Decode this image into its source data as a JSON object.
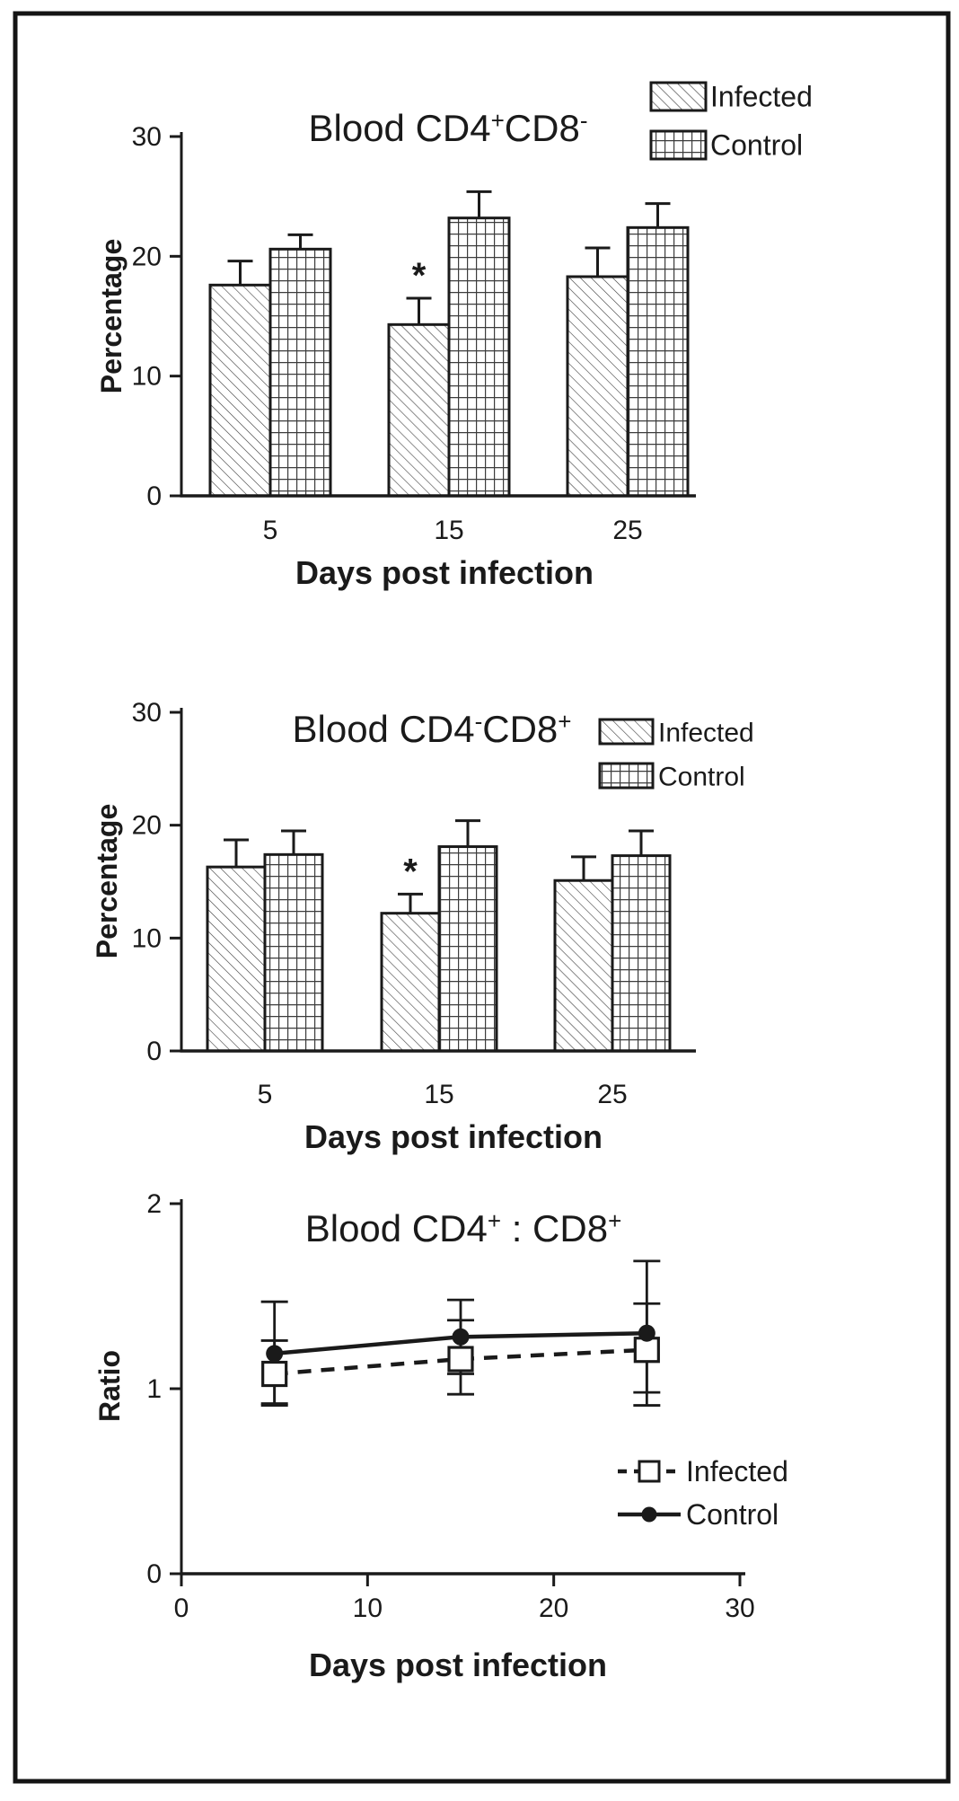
{
  "figure": {
    "background": "#ffffff",
    "frame_color": "#141414",
    "ink_color": "#1a1a1a"
  },
  "chart_data": [
    {
      "id": "blood-cd4pos-cd8neg",
      "type": "bar",
      "title": "Blood CD4+CD8-",
      "title_segments": [
        {
          "text": "Blood CD4"
        },
        {
          "text": "+",
          "sup": true
        },
        {
          "text": "CD8"
        },
        {
          "text": "-",
          "sup": true
        }
      ],
      "xlabel": "Days post infection",
      "ylabel": "Percentage",
      "categories": [
        "5",
        "15",
        "25"
      ],
      "yticks": [
        0,
        10,
        20,
        30
      ],
      "ylim": [
        0,
        30
      ],
      "grid": false,
      "legend_position": "top-right",
      "series": [
        {
          "name": "Infected",
          "pattern": "diagonal",
          "values": [
            17.6,
            14.3,
            18.3
          ],
          "error_upper": [
            2.0,
            2.2,
            2.4
          ]
        },
        {
          "name": "Control",
          "pattern": "grid",
          "values": [
            20.6,
            23.2,
            22.4
          ],
          "error_upper": [
            1.2,
            2.2,
            2.0
          ]
        }
      ],
      "annotations": [
        {
          "text": "*",
          "series": "Infected",
          "category_index": 1
        }
      ],
      "legend": [
        {
          "label": "Infected",
          "pattern": "diagonal"
        },
        {
          "label": "Control",
          "pattern": "grid"
        }
      ]
    },
    {
      "id": "blood-cd4neg-cd8pos",
      "type": "bar",
      "title": "Blood CD4-CD8+",
      "title_segments": [
        {
          "text": "Blood CD4"
        },
        {
          "text": "-",
          "sup": true
        },
        {
          "text": "CD8"
        },
        {
          "text": "+",
          "sup": true
        }
      ],
      "xlabel": "Days post infection",
      "ylabel": "Percentage",
      "categories": [
        "5",
        "15",
        "25"
      ],
      "yticks": [
        0,
        10,
        20,
        30
      ],
      "ylim": [
        0,
        30
      ],
      "grid": false,
      "legend_position": "top-right",
      "series": [
        {
          "name": "Infected",
          "pattern": "diagonal",
          "values": [
            16.3,
            12.2,
            15.1
          ],
          "error_upper": [
            2.4,
            1.7,
            2.1
          ]
        },
        {
          "name": "Control",
          "pattern": "grid",
          "values": [
            17.4,
            18.1,
            17.3
          ],
          "error_upper": [
            2.1,
            2.3,
            2.2
          ]
        }
      ],
      "annotations": [
        {
          "text": "*",
          "series": "Infected",
          "category_index": 1
        }
      ],
      "legend": [
        {
          "label": "Infected",
          "pattern": "diagonal"
        },
        {
          "label": "Control",
          "pattern": "grid"
        }
      ]
    },
    {
      "id": "blood-cd4-cd8-ratio",
      "type": "line",
      "title": "Blood CD4+ : CD8+",
      "title_segments": [
        {
          "text": "Blood CD4"
        },
        {
          "text": "+",
          "sup": true
        },
        {
          "text": " : CD8"
        },
        {
          "text": "+",
          "sup": true
        }
      ],
      "xlabel": "Days post infection",
      "ylabel": "Ratio",
      "x": [
        5,
        15,
        25
      ],
      "xticks": [
        0,
        10,
        20,
        30
      ],
      "xlim": [
        0,
        30
      ],
      "yticks": [
        0,
        1,
        2
      ],
      "ylim": [
        0,
        2
      ],
      "grid": false,
      "legend_position": "inside-bottom-right",
      "series": [
        {
          "name": "Infected",
          "marker": "open-square",
          "line": "dashed",
          "values": [
            1.08,
            1.16,
            1.21
          ],
          "error_upper": [
            0.18,
            0.21,
            0.25
          ],
          "error_lower": [
            0.17,
            0.19,
            0.23
          ]
        },
        {
          "name": "Control",
          "marker": "filled-circle",
          "line": "solid",
          "values": [
            1.19,
            1.28,
            1.3
          ],
          "error_upper": [
            0.28,
            0.2,
            0.39
          ],
          "error_lower": [
            0.27,
            0.2,
            0.39
          ]
        }
      ],
      "legend": [
        {
          "label": "Infected",
          "marker": "open-square",
          "line": "dashed"
        },
        {
          "label": "Control",
          "marker": "filled-circle",
          "line": "solid"
        }
      ]
    }
  ]
}
